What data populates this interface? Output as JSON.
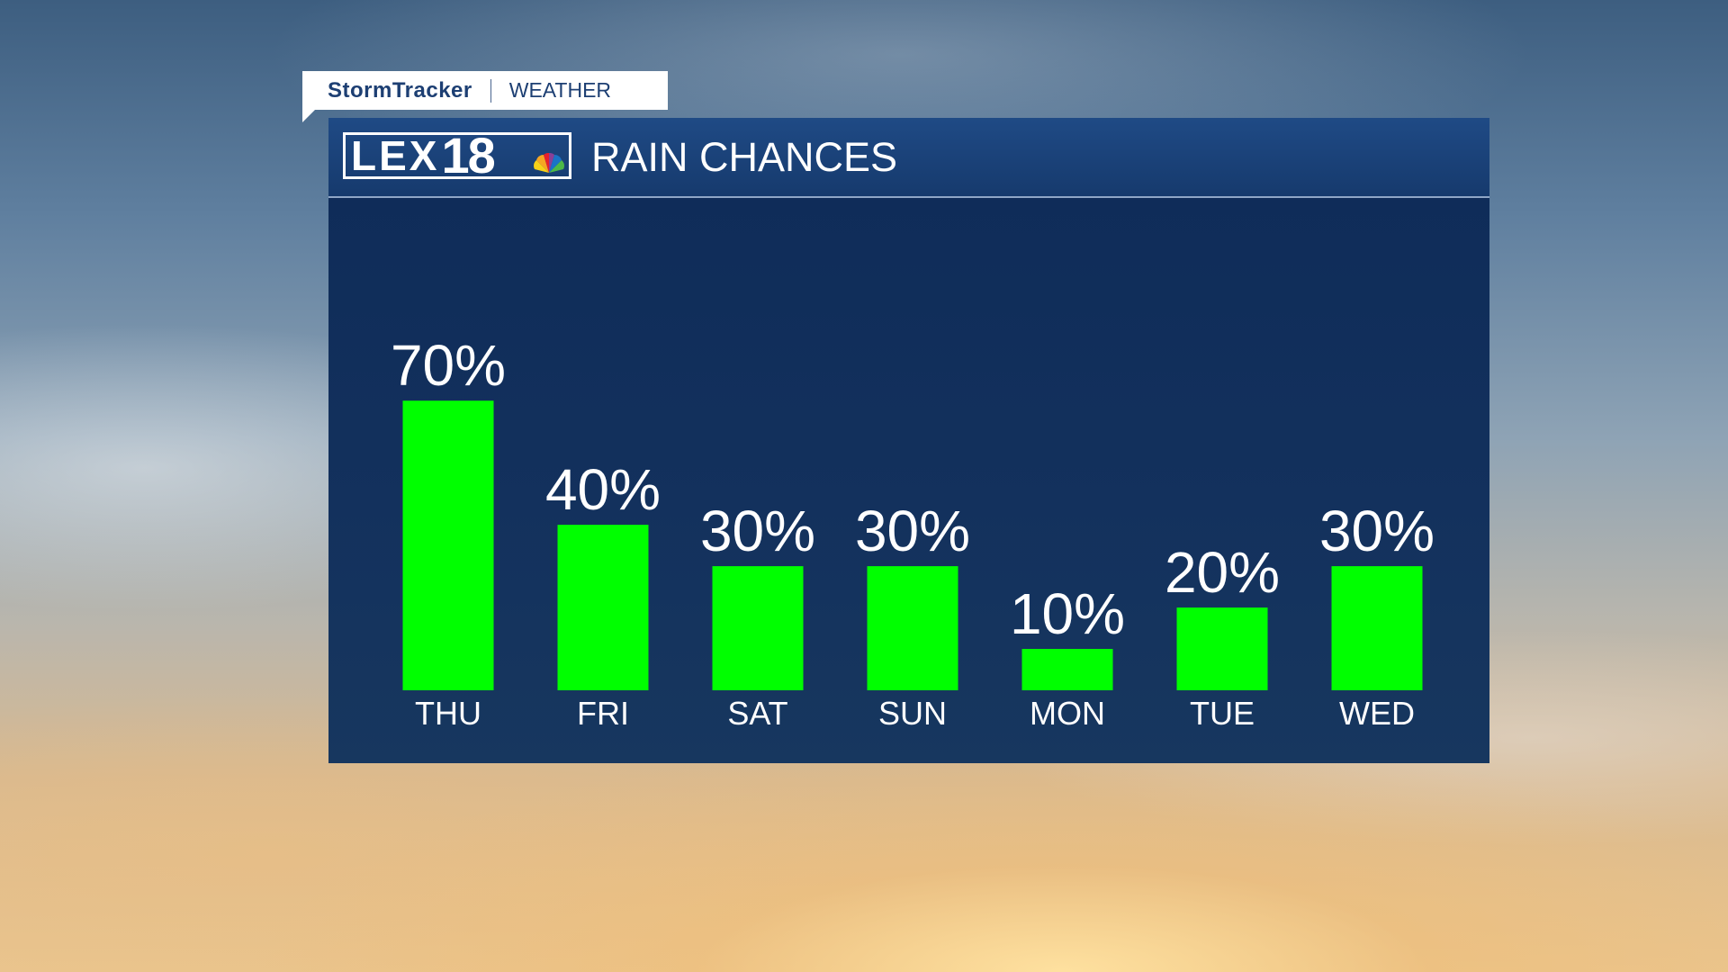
{
  "header": {
    "brand_main": "StormTracker",
    "brand_sub": "WEATHER",
    "logo_text": "LEX",
    "logo_number": "18"
  },
  "chart_data": {
    "type": "bar",
    "title": "RAIN CHANCES",
    "categories": [
      "THU",
      "FRI",
      "SAT",
      "SUN",
      "MON",
      "TUE",
      "WED"
    ],
    "values": [
      70,
      40,
      30,
      30,
      10,
      20,
      30
    ],
    "value_labels": [
      "70%",
      "40%",
      "30%",
      "30%",
      "10%",
      "20%",
      "30%"
    ],
    "ylim": [
      0,
      100
    ],
    "grid": false,
    "legend": "none",
    "bar_color": "#00ff00"
  },
  "colors": {
    "panel": "#13315d",
    "header_bar": "#1f4a85",
    "brand_text": "#1d3f73"
  }
}
